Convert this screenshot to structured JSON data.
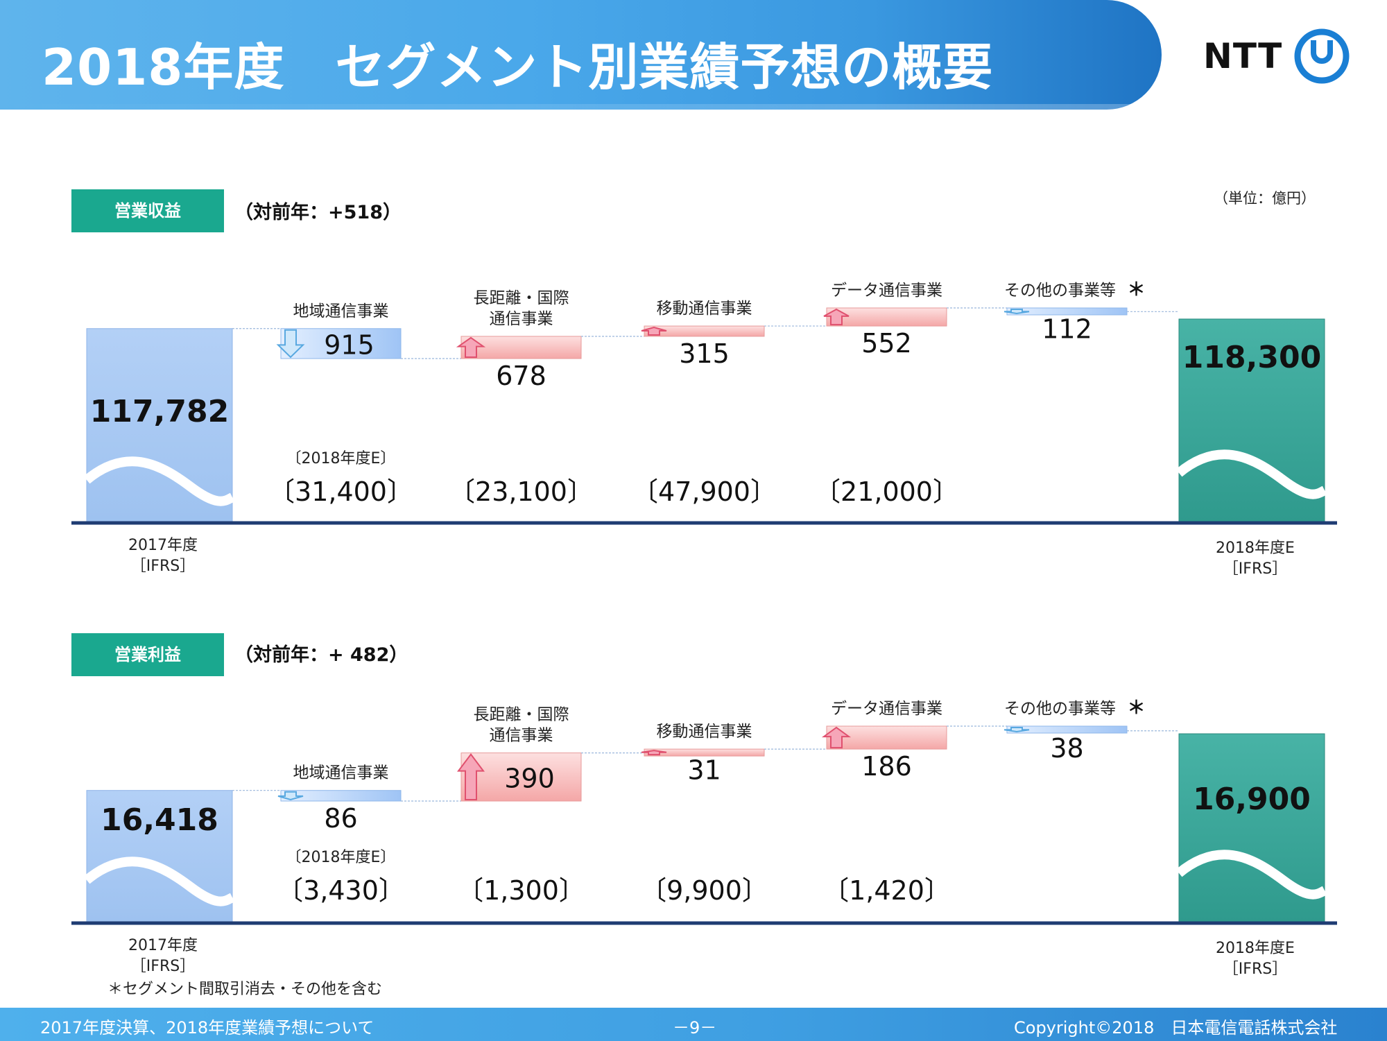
{
  "header": {
    "title": "2018年度　セグメント別業績予想の概要",
    "logo_text": "NTT"
  },
  "unit_note": "（単位：億円）",
  "sections": [
    {
      "label": "営業収益",
      "delta": "（対前年：+518）"
    },
    {
      "label": "営業利益",
      "delta": "（対前年：+ 482）"
    }
  ],
  "chart_data": [
    {
      "type": "waterfall",
      "start": {
        "value": 117782,
        "label": "117,782",
        "caption": [
          "2017年度",
          "［IFRS］"
        ]
      },
      "end": {
        "value": 118300,
        "label": "118,300",
        "caption": [
          "2018年度E",
          "［IFRS］"
        ]
      },
      "steps": [
        {
          "name": [
            "地域通信事業"
          ],
          "change": -915,
          "label": "915",
          "forecast_caption": "〔2018年度E〕",
          "forecast": "〔31,400〕"
        },
        {
          "name": [
            "長距離・国際",
            "通信事業"
          ],
          "change": 678,
          "label": "678",
          "forecast": "〔23,100〕"
        },
        {
          "name": [
            "移動通信事業"
          ],
          "change": 315,
          "label": "315",
          "forecast": "〔47,900〕"
        },
        {
          "name": [
            "データ通信事業"
          ],
          "change": 552,
          "label": "552",
          "forecast": "〔21,000〕"
        },
        {
          "name": [
            "その他の事業等"
          ],
          "asterisk": "＊",
          "change": -112,
          "label": "112"
        }
      ]
    },
    {
      "type": "waterfall",
      "start": {
        "value": 16418,
        "label": "16,418",
        "caption": [
          "2017年度",
          "［IFRS］"
        ]
      },
      "end": {
        "value": 16900,
        "label": "16,900",
        "caption": [
          "2018年度E",
          "［IFRS］"
        ]
      },
      "steps": [
        {
          "name": [
            "地域通信事業"
          ],
          "change": -86,
          "label": "86",
          "forecast_caption": "〔2018年度E〕",
          "forecast": "〔3,430〕"
        },
        {
          "name": [
            "長距離・国際",
            "通信事業"
          ],
          "change": 390,
          "label": "390",
          "forecast": "〔1,300〕"
        },
        {
          "name": [
            "移動通信事業"
          ],
          "change": 31,
          "label": "31",
          "forecast": "〔9,900〕"
        },
        {
          "name": [
            "データ通信事業"
          ],
          "change": 186,
          "label": "186",
          "forecast": "〔1,420〕"
        },
        {
          "name": [
            "その他の事業等"
          ],
          "asterisk": "＊",
          "change": -38,
          "label": "38"
        }
      ],
      "footnote": "＊セグメント間取引消去・その他を含む"
    }
  ],
  "colors": {
    "header_start": "#5fb4ec",
    "header_end": "#1f74c4",
    "label_green": "#1aa88f",
    "start_bar": "#a7c8f2",
    "end_bar": "#3aa89c",
    "increase": "#f7b5b5",
    "decrease": "#b5d4f7",
    "axis": "#1f3c73"
  },
  "footer": {
    "left": "2017年度決算、2018年度業績予想について",
    "center": "－9－",
    "right": "Copyright©2018　日本電信電話株式会社"
  }
}
